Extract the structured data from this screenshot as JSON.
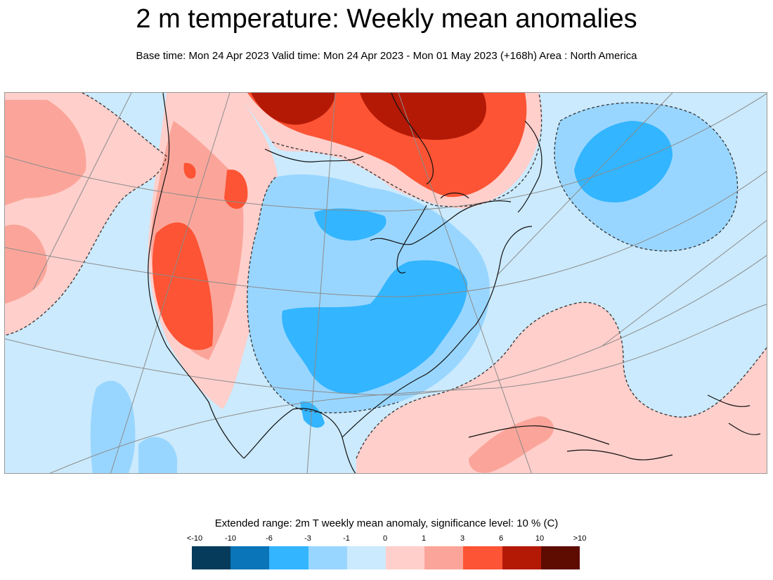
{
  "header": {
    "title": "2 m temperature: Weekly mean anomalies",
    "subtitle": "Base time: Mon 24 Apr 2023 Valid time: Mon 24 Apr 2023 - Mon 01 May 2023 (+168h) Area : North America"
  },
  "map": {
    "area": "North America",
    "colors": {
      "strong_cold": "#1a9ee6",
      "cold": "#33b5ff",
      "light_cold": "#99d6ff",
      "slight_cold": "#cbeafd",
      "slight_warm": "#ffcfcb",
      "warm": "#fba59a",
      "strong_warm": "#fc5434",
      "very_warm": "#b41906",
      "extreme_warm": "#5e0b02",
      "significance_line": "#333333",
      "graticule": "#8c8c8c",
      "coastline": "#111111"
    }
  },
  "legend": {
    "title": "Extended range: 2m T weekly mean anomaly, significance level: 10 % (C)",
    "labels": [
      "<-10",
      "-10",
      "-6",
      "-3",
      "-1",
      "0",
      "1",
      "3",
      "6",
      "10",
      ">10"
    ],
    "colors": [
      "#073b5c",
      "#0a75b8",
      "#33b5ff",
      "#99d6ff",
      "#cbeafd",
      "#ffcfcb",
      "#fba59a",
      "#fc5434",
      "#b41906",
      "#5e0b02"
    ]
  }
}
